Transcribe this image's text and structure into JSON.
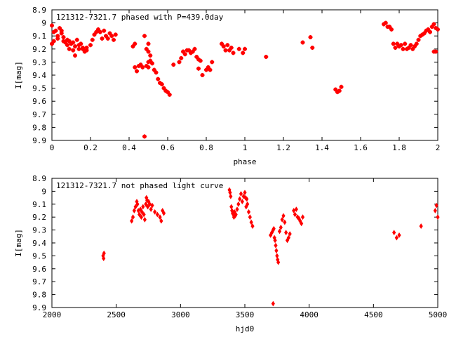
{
  "chart_data": [
    {
      "type": "scatter",
      "title": "121312-7321.7 phased with P=439.0day",
      "xlabel": "phase",
      "ylabel": "I[mag]",
      "xlim": [
        0,
        2
      ],
      "ylim": [
        9.9,
        8.9
      ],
      "y_inverted": true,
      "xticks": [
        "0",
        "0.2",
        "0.4",
        "0.6",
        "0.8",
        "1",
        "1.2",
        "1.4",
        "1.6",
        "1.8",
        "2"
      ],
      "yticks": [
        "8.9",
        "9",
        "9.1",
        "9.2",
        "9.3",
        "9.4",
        "9.5",
        "9.6",
        "9.7",
        "9.8",
        "9.9"
      ],
      "grid": false,
      "marker_color": "#ff0000",
      "x": [
        0.0,
        0.0,
        0.01,
        0.01,
        0.02,
        0.03,
        0.03,
        0.04,
        0.05,
        0.05,
        0.06,
        0.06,
        0.07,
        0.08,
        0.08,
        0.09,
        0.09,
        0.1,
        0.11,
        0.11,
        0.12,
        0.12,
        0.13,
        0.14,
        0.14,
        0.15,
        0.16,
        0.16,
        0.17,
        0.18,
        0.18,
        0.2,
        0.21,
        0.22,
        0.23,
        0.24,
        0.25,
        0.26,
        0.27,
        0.28,
        0.29,
        0.3,
        0.31,
        0.32,
        0.33,
        0.42,
        0.43,
        0.43,
        0.44,
        0.45,
        0.46,
        0.47,
        0.48,
        0.49,
        0.5,
        0.5,
        0.51,
        0.52,
        0.53,
        0.54,
        0.55,
        0.56,
        0.57,
        0.58,
        0.59,
        0.6,
        0.61,
        0.48,
        0.49,
        0.5,
        0.5,
        0.51,
        0.63,
        0.66,
        0.67,
        0.68,
        0.69,
        0.7,
        0.71,
        0.72,
        0.73,
        0.74,
        0.75,
        0.76,
        0.76,
        0.77,
        0.78,
        0.8,
        0.81,
        0.82,
        0.83,
        0.88,
        0.89,
        0.9,
        0.91,
        0.92,
        0.93,
        0.94,
        0.97,
        0.99,
        1.0,
        1.11,
        1.3,
        1.34,
        1.35,
        1.47,
        1.48,
        1.49,
        1.5,
        1.72,
        1.73,
        1.74,
        1.75,
        1.76,
        1.77,
        1.78,
        1.79,
        1.8,
        1.81,
        1.82,
        1.83,
        1.84,
        1.85,
        1.86,
        1.87,
        1.88,
        1.89,
        1.9,
        1.91,
        1.92,
        1.93,
        1.94,
        1.95,
        1.96,
        1.97,
        1.98,
        1.99,
        2.0,
        1.99,
        1.98
      ],
      "values": [
        9.02,
        9.16,
        9.07,
        9.14,
        9.06,
        9.1,
        9.12,
        9.04,
        9.06,
        9.08,
        9.14,
        9.11,
        9.15,
        9.13,
        9.17,
        9.14,
        9.2,
        9.16,
        9.21,
        9.15,
        9.18,
        9.25,
        9.13,
        9.17,
        9.2,
        9.16,
        9.19,
        9.2,
        9.22,
        9.19,
        9.21,
        9.17,
        9.13,
        9.09,
        9.07,
        9.05,
        9.07,
        9.12,
        9.06,
        9.1,
        9.12,
        9.08,
        9.1,
        9.13,
        9.09,
        9.18,
        9.34,
        9.16,
        9.37,
        9.33,
        9.32,
        9.34,
        9.1,
        9.33,
        9.3,
        9.34,
        9.29,
        9.31,
        9.36,
        9.38,
        9.43,
        9.46,
        9.47,
        9.5,
        9.52,
        9.53,
        9.55,
        9.87,
        9.2,
        9.22,
        9.16,
        9.25,
        9.32,
        9.3,
        9.27,
        9.22,
        9.24,
        9.21,
        9.21,
        9.23,
        9.22,
        9.2,
        9.26,
        9.35,
        9.28,
        9.29,
        9.4,
        9.36,
        9.34,
        9.36,
        9.3,
        9.16,
        9.18,
        9.21,
        9.17,
        9.21,
        9.19,
        9.23,
        9.2,
        9.23,
        9.2,
        9.26,
        9.15,
        9.11,
        9.19,
        9.51,
        9.53,
        9.52,
        9.49,
        9.01,
        9.0,
        9.03,
        9.03,
        9.05,
        9.16,
        9.19,
        9.16,
        9.18,
        9.17,
        9.2,
        9.16,
        9.2,
        9.19,
        9.17,
        9.2,
        9.18,
        9.16,
        9.13,
        9.1,
        9.09,
        9.08,
        9.06,
        9.05,
        9.07,
        9.03,
        9.01,
        9.04,
        9.05,
        9.22,
        9.22
      ]
    },
    {
      "type": "scatter",
      "title": "121312-7321.7 not phased light curve",
      "xlabel": "hjd0",
      "ylabel": "I[mag]",
      "xlim": [
        2000,
        5000
      ],
      "ylim": [
        9.9,
        8.9
      ],
      "y_inverted": true,
      "xticks": [
        "2000",
        "2500",
        "3000",
        "3500",
        "4000",
        "4500",
        "5000"
      ],
      "yticks": [
        "8.9",
        "9",
        "9.1",
        "9.2",
        "9.3",
        "9.4",
        "9.5",
        "9.6",
        "9.7",
        "9.8",
        "9.9"
      ],
      "grid": false,
      "marker_color": "#ff0000",
      "x": [
        2398,
        2402,
        2405,
        2620,
        2630,
        2640,
        2650,
        2660,
        2665,
        2672,
        2680,
        2688,
        2695,
        2700,
        2708,
        2715,
        2722,
        2730,
        2735,
        2740,
        2745,
        2752,
        2760,
        2770,
        2780,
        2800,
        2820,
        2840,
        2850,
        2860,
        2870,
        3380,
        3385,
        3390,
        3395,
        3400,
        3405,
        3410,
        3415,
        3420,
        3425,
        3430,
        3440,
        3450,
        3460,
        3470,
        3480,
        3490,
        3500,
        3505,
        3510,
        3515,
        3520,
        3530,
        3540,
        3550,
        3560,
        3700,
        3710,
        3720,
        3725,
        3730,
        3735,
        3740,
        3745,
        3750,
        3755,
        3760,
        3770,
        3780,
        3790,
        3800,
        3810,
        3820,
        3830,
        3840,
        3850,
        3880,
        3890,
        3900,
        3910,
        3920,
        3930,
        3940,
        3950,
        3720,
        4660,
        4680,
        4700,
        4870,
        4980,
        4990,
        5000
      ],
      "values": [
        9.5,
        9.52,
        9.48,
        9.23,
        9.2,
        9.15,
        9.12,
        9.08,
        9.1,
        9.15,
        9.18,
        9.14,
        9.2,
        9.16,
        9.12,
        9.18,
        9.22,
        9.1,
        9.05,
        9.07,
        9.12,
        9.08,
        9.1,
        9.14,
        9.11,
        9.16,
        9.18,
        9.2,
        9.23,
        9.15,
        9.17,
        8.99,
        9.01,
        9.04,
        9.12,
        9.15,
        9.17,
        9.18,
        9.2,
        9.16,
        9.19,
        9.18,
        9.14,
        9.1,
        9.06,
        9.02,
        9.08,
        9.04,
        9.01,
        9.05,
        9.12,
        9.06,
        9.1,
        9.16,
        9.2,
        9.24,
        9.27,
        9.34,
        9.32,
        9.3,
        9.29,
        9.36,
        9.38,
        9.42,
        9.46,
        9.5,
        9.53,
        9.55,
        9.31,
        9.28,
        9.22,
        9.19,
        9.24,
        9.32,
        9.38,
        9.36,
        9.33,
        9.15,
        9.18,
        9.14,
        9.2,
        9.21,
        9.23,
        9.25,
        9.2,
        9.87,
        9.32,
        9.36,
        9.34,
        9.27,
        9.15,
        9.11,
        9.2
      ]
    }
  ]
}
